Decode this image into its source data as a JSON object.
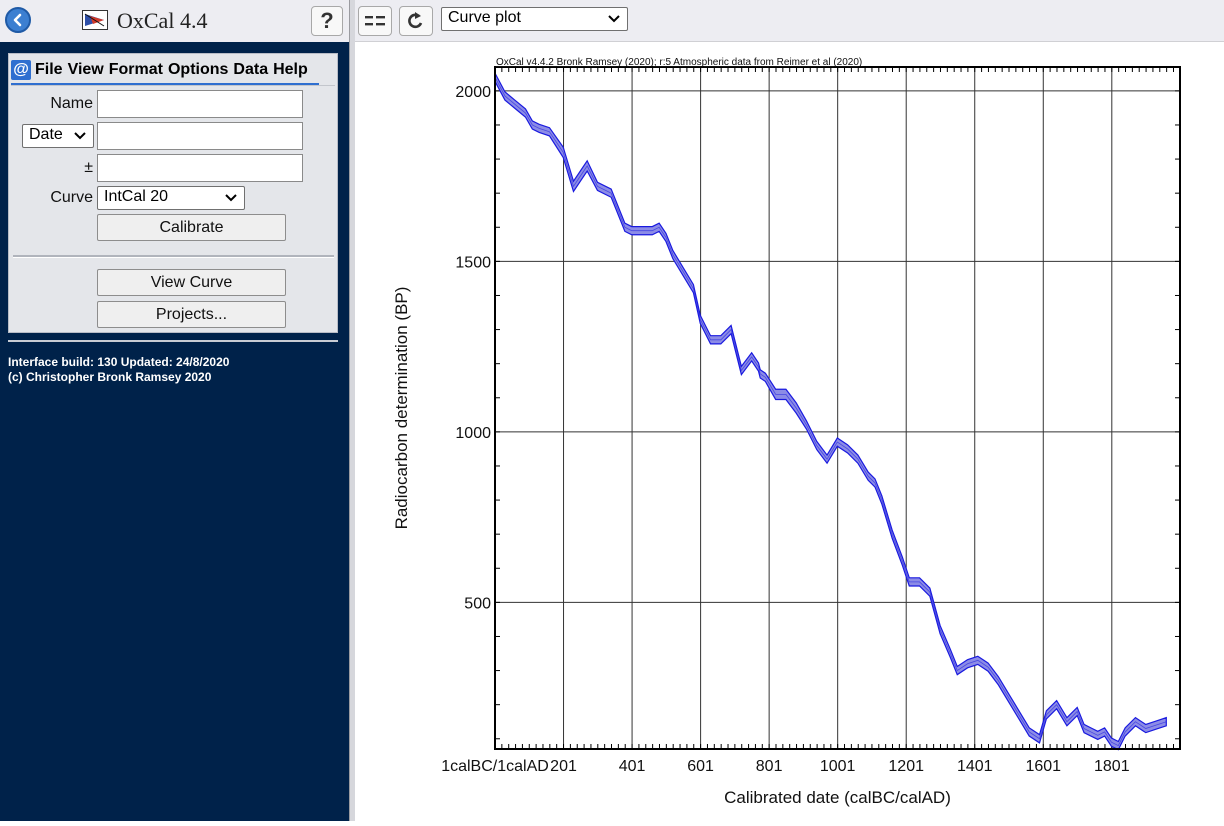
{
  "app": {
    "title": "OxCal 4.4",
    "help_label": "?"
  },
  "toolbar": {
    "plot_select": "Curve plot"
  },
  "menu": {
    "icon": "@",
    "items": [
      "File",
      "View",
      "Format",
      "Options",
      "Data",
      "Help"
    ]
  },
  "form": {
    "name_label": "Name",
    "date_select": "Date",
    "plusminus_label": "±",
    "curve_label": "Curve",
    "curve_select": "IntCal 20",
    "calibrate_label": "Calibrate",
    "view_curve_label": "View Curve",
    "projects_label": "Projects...",
    "name_value": "",
    "date_value": "",
    "error_value": ""
  },
  "footer": {
    "line1": "Interface build: 130 Updated: 24/8/2020",
    "line2": "(c) Christopher Bronk Ramsey 2020"
  },
  "chart_data": {
    "type": "area",
    "title": "OxCal v4.4.2 Bronk Ramsey (2020); r:5 Atmospheric data from Reimer et al (2020)",
    "xlabel": "Calibrated date (calBC/calAD)",
    "ylabel": "Radiocarbon determination (BP)",
    "xlim": [
      1,
      2000
    ],
    "ylim": [
      70,
      2070
    ],
    "x_ticks": [
      1,
      201,
      401,
      601,
      801,
      1001,
      1201,
      1401,
      1601,
      1801
    ],
    "x_tick_labels": [
      "1calBC/1calAD",
      "201",
      "401",
      "601",
      "801",
      "1001",
      "1201",
      "1401",
      "1601",
      "1801"
    ],
    "y_ticks": [
      500,
      1000,
      1500,
      2000
    ],
    "y_tick_labels": [
      "500",
      "1000",
      "1500",
      "2000"
    ],
    "grid": true,
    "colors": {
      "curve": "#1a1adf",
      "band": "#8c8ce6"
    },
    "series": [
      {
        "x": [
          1,
          30,
          60,
          90,
          110,
          130,
          160,
          200,
          230,
          270,
          300,
          340,
          380,
          400,
          430,
          460,
          480,
          500,
          520,
          550,
          580,
          600,
          630,
          660,
          690,
          720,
          750,
          770,
          775,
          790,
          820,
          850,
          880,
          910,
          940,
          970,
          1000,
          1030,
          1060,
          1090,
          1110,
          1130,
          1160,
          1190,
          1210,
          1240,
          1270,
          1300,
          1330,
          1350,
          1380,
          1410,
          1440,
          1470,
          1500,
          1530,
          1560,
          1590,
          1610,
          1640,
          1670,
          1700,
          1720,
          1740,
          1760,
          1780,
          1800,
          1820,
          1840,
          1870,
          1900,
          1930,
          1960
        ],
        "y": [
          2040,
          1985,
          1960,
          1935,
          1900,
          1890,
          1880,
          1820,
          1720,
          1780,
          1720,
          1700,
          1600,
          1590,
          1590,
          1590,
          1600,
          1570,
          1520,
          1470,
          1420,
          1330,
          1270,
          1270,
          1300,
          1180,
          1220,
          1190,
          1170,
          1160,
          1110,
          1110,
          1070,
          1020,
          960,
          920,
          970,
          950,
          920,
          870,
          850,
          800,
          700,
          620,
          560,
          560,
          530,
          420,
          350,
          300,
          320,
          330,
          310,
          270,
          220,
          170,
          120,
          100,
          170,
          200,
          150,
          180,
          130,
          120,
          110,
          120,
          90,
          80,
          120,
          150,
          130,
          140,
          150
        ],
        "band": [
          12,
          12,
          12,
          12,
          12,
          12,
          12,
          15,
          15,
          15,
          12,
          12,
          12,
          12,
          12,
          12,
          12,
          12,
          12,
          12,
          12,
          12,
          12,
          12,
          12,
          12,
          12,
          12,
          12,
          12,
          15,
          15,
          15,
          12,
          12,
          12,
          12,
          12,
          12,
          12,
          12,
          12,
          12,
          12,
          12,
          12,
          12,
          12,
          12,
          12,
          12,
          12,
          12,
          12,
          12,
          12,
          12,
          12,
          12,
          12,
          12,
          12,
          12,
          12,
          12,
          12,
          12,
          12,
          12,
          12,
          12,
          12,
          12
        ]
      }
    ]
  }
}
